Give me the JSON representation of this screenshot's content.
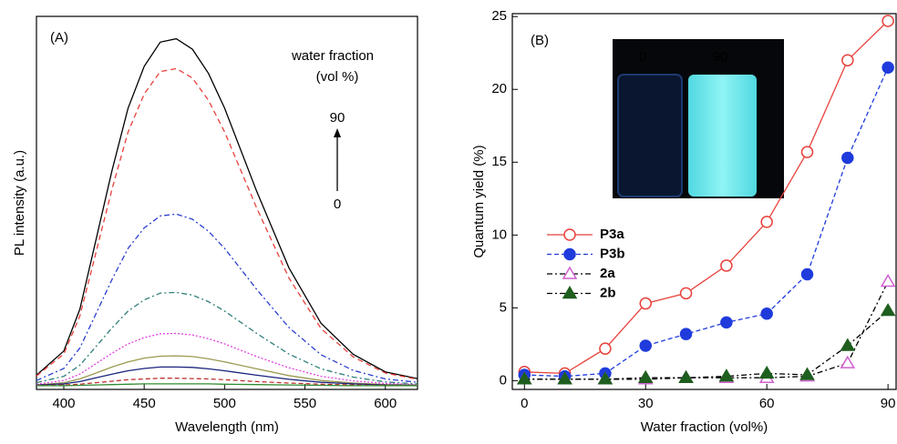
{
  "chart_data": [
    {
      "type": "line",
      "x_label": "Wavelength (nm)",
      "y_label": "PL intensity (a.u.)",
      "annotations": [
        "(A)",
        "water fraction",
        "(vol %)",
        "90",
        "0"
      ],
      "x": [
        383,
        400,
        410,
        420,
        430,
        440,
        450,
        460,
        470,
        480,
        490,
        500,
        520,
        540,
        560,
        580,
        600,
        620
      ],
      "xlim": [
        383,
        620
      ],
      "xticks": [
        400,
        450,
        500,
        550,
        600
      ],
      "ylim": [
        0,
        100
      ],
      "series": [
        {
          "color": "#000000",
          "dash": "none",
          "values": [
            3.8,
            10.3,
            21.5,
            40.1,
            58.7,
            75.4,
            86.6,
            93.1,
            94,
            91.2,
            84.7,
            75.4,
            53.1,
            32.6,
            17.7,
            9.4,
            4.7,
            2.9
          ]
        },
        {
          "color": "#e8413c",
          "dash": "6 4",
          "values": [
            3.6,
            9.5,
            19.7,
            36.7,
            53.7,
            69,
            79.2,
            85.2,
            86,
            83.5,
            77.5,
            69,
            48.6,
            29.9,
            16.3,
            8.7,
            4.4,
            2.7
          ]
        },
        {
          "color": "#2a3fd0",
          "dash": "6 3 2 3",
          "values": [
            2.4,
            5.6,
            11.1,
            20.3,
            29.5,
            37.8,
            43.3,
            46.5,
            47,
            45.6,
            42.4,
            37.8,
            26.8,
            16.6,
            9.3,
            5.1,
            2.8,
            1.9
          ]
        },
        {
          "color": "#2f7f7a",
          "dash": "6 3 2 3",
          "values": [
            1.8,
            3.5,
            6.5,
            11.5,
            16.5,
            21,
            24,
            25.8,
            26,
            25.3,
            23.5,
            21,
            15,
            9.5,
            5.5,
            3.3,
            2,
            1.5
          ]
        },
        {
          "color": "#e040e0",
          "dash": "2 2",
          "values": [
            1.4,
            2.4,
            4.1,
            6.9,
            9.7,
            12.2,
            13.9,
            14.9,
            15,
            14.6,
            13.6,
            12.2,
            8.8,
            5.8,
            3.5,
            2.3,
            1.6,
            1.3
          ]
        },
        {
          "color": "#9a9a50",
          "dash": "none",
          "values": [
            1.2,
            1.8,
            2.8,
            4.4,
            6,
            7.4,
            8.4,
            8.9,
            9,
            8.8,
            8.2,
            7.4,
            5.5,
            3.7,
            2.4,
            1.7,
            1.3,
            1.2
          ]
        },
        {
          "color": "#1a237e",
          "dash": "none",
          "values": [
            1.2,
            1.5,
            2.1,
            3.1,
            4.1,
            5,
            5.6,
            6,
            6,
            5.9,
            5.5,
            5,
            3.8,
            2.7,
            1.9,
            1.5,
            1.2,
            1.1
          ]
        },
        {
          "color": "#c03030",
          "dash": "5 3",
          "values": [
            1.1,
            1.2,
            1.4,
            1.8,
            2.2,
            2.6,
            2.8,
            3,
            3,
            2.9,
            2.8,
            2.6,
            2.1,
            1.7,
            1.4,
            1.2,
            1.1,
            1
          ]
        },
        {
          "color": "#2e8b2e",
          "dash": "none",
          "values": [
            1,
            1,
            1.1,
            1.2,
            1.3,
            1.4,
            1.5,
            1.5,
            1.5,
            1.5,
            1.5,
            1.4,
            1.3,
            1.2,
            1.1,
            1,
            1,
            1
          ]
        }
      ]
    },
    {
      "type": "line",
      "x_label": "Water fraction (vol%)",
      "y_label": "Quantum yield (%)",
      "annotations": [
        "(B)",
        "0",
        "90"
      ],
      "x": [
        0,
        10,
        20,
        30,
        40,
        50,
        60,
        70,
        80,
        90
      ],
      "xlim": [
        -3,
        92
      ],
      "xticks": [
        0,
        30,
        60,
        90
      ],
      "ylim": [
        -0.6,
        25.2
      ],
      "yticks": [
        0,
        5,
        10,
        15,
        20,
        25
      ],
      "series": [
        {
          "name": "P3a",
          "color": "#e8413c",
          "line_color": "#e8413c",
          "dash": "none",
          "marker": "circle",
          "filled": false,
          "values": [
            0.6,
            0.5,
            2.2,
            5.3,
            6,
            7.9,
            10.9,
            15.7,
            22,
            24.7
          ]
        },
        {
          "name": "P3b",
          "color": "#1f3bdc",
          "line_color": "#1f3bdc",
          "dash": "5 3",
          "marker": "circle",
          "filled": true,
          "values": [
            0.4,
            0.3,
            0.5,
            2.4,
            3.2,
            4,
            4.6,
            7.3,
            15.3,
            21.5
          ]
        },
        {
          "name": "2a",
          "color": "#d060d0",
          "line_color": "#000000",
          "dash": "6 3 2 3",
          "marker": "triangle",
          "filled": false,
          "values": [
            0.1,
            0.1,
            0.1,
            0.1,
            0.2,
            0.2,
            0.2,
            0.3,
            1.2,
            6.8
          ]
        },
        {
          "name": "2b",
          "color": "#1e5e1e",
          "line_color": "#000000",
          "dash": "6 3 2 3",
          "marker": "triangle",
          "filled": true,
          "values": [
            0.1,
            0.1,
            0.1,
            0.2,
            0.2,
            0.3,
            0.5,
            0.4,
            2.4,
            4.8
          ]
        }
      ]
    }
  ]
}
